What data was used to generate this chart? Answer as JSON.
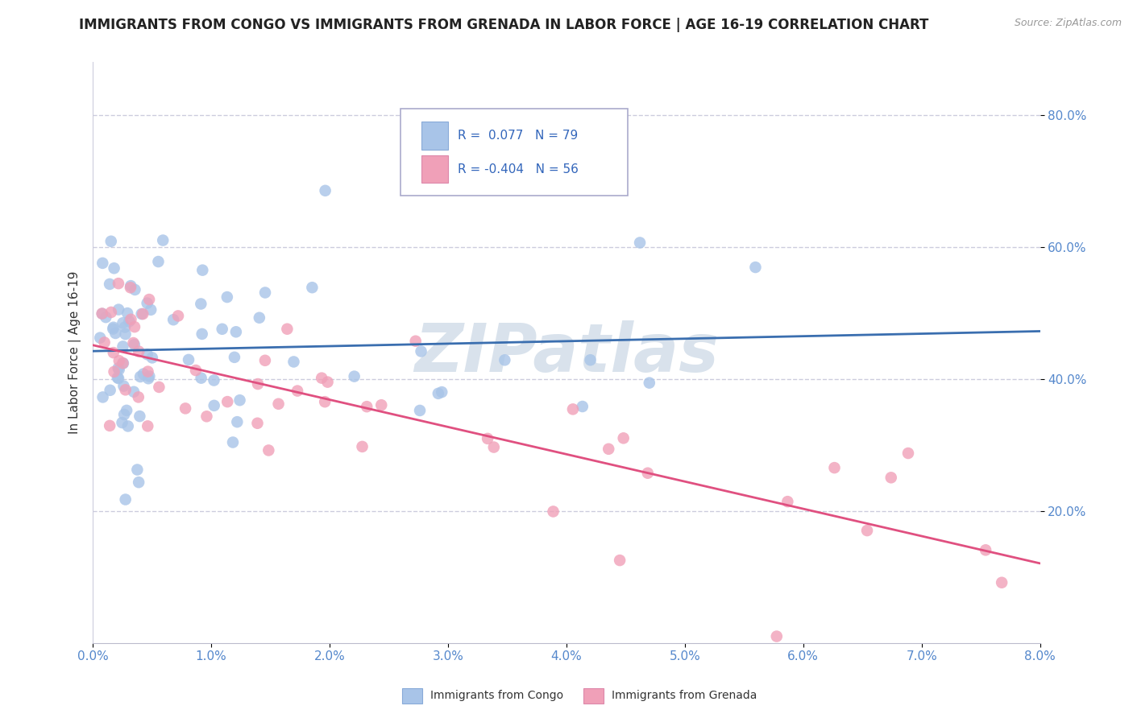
{
  "title": "IMMIGRANTS FROM CONGO VS IMMIGRANTS FROM GRENADA IN LABOR FORCE | AGE 16-19 CORRELATION CHART",
  "source": "Source: ZipAtlas.com",
  "ylabel": "In Labor Force | Age 16-19",
  "xlim": [
    0.0,
    0.08
  ],
  "ylim": [
    0.0,
    0.88
  ],
  "xtick_labels": [
    "0.0%",
    "1.0%",
    "2.0%",
    "3.0%",
    "4.0%",
    "5.0%",
    "6.0%",
    "7.0%",
    "8.0%"
  ],
  "xtick_vals": [
    0.0,
    0.01,
    0.02,
    0.03,
    0.04,
    0.05,
    0.06,
    0.07,
    0.08
  ],
  "ytick_labels": [
    "20.0%",
    "40.0%",
    "60.0%",
    "80.0%"
  ],
  "ytick_vals": [
    0.2,
    0.4,
    0.6,
    0.8
  ],
  "congo_R": 0.077,
  "congo_N": 79,
  "grenada_R": -0.404,
  "grenada_N": 56,
  "congo_color": "#a8c4e8",
  "congo_line_color": "#3a6eaf",
  "grenada_color": "#f0a0b8",
  "grenada_line_color": "#e05080",
  "watermark": "ZIPatlas",
  "watermark_color": "#c0d0e0",
  "background_color": "#ffffff",
  "grid_color": "#ccccdd",
  "title_fontsize": 12,
  "axis_label_fontsize": 11,
  "tick_fontsize": 11
}
